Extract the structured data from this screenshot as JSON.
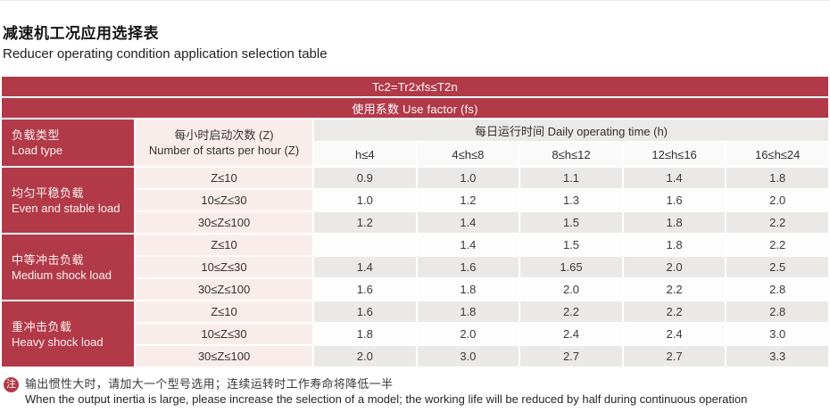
{
  "page": {
    "title_zh": "减速机工况应用选择表",
    "title_en": "Reducer operating condition application selection table"
  },
  "table": {
    "formula_bar": "Tc2=Tr2xfs≤T2n",
    "use_factor_bar": "使用系数 Use factor (fs)",
    "load_type_header_zh": "负载类型",
    "load_type_header_en": "Load type",
    "starts_header_zh": "每小时启动次数 (Z)",
    "starts_header_en": "Number of starts per hour (Z)",
    "daily_time_header": "每日运行时间 Daily operating time (h)",
    "time_columns": [
      "h≤4",
      "4≤h≤8",
      "8≤h≤12",
      "12≤h≤16",
      "16≤h≤24"
    ],
    "groups": [
      {
        "zh": "均匀平稳负载",
        "en": "Even and stable load",
        "rows": [
          {
            "z": "Z≤10",
            "values": [
              "0.9",
              "1.0",
              "1.1",
              "1.4",
              "1.8"
            ]
          },
          {
            "z": "10≤Z≤30",
            "values": [
              "1.0",
              "1.2",
              "1.3",
              "1.6",
              "2.0"
            ]
          },
          {
            "z": "30≤Z≤100",
            "values": [
              "1.2",
              "1.4",
              "1.5",
              "1.8",
              "2.2"
            ]
          }
        ]
      },
      {
        "zh": "中等冲击负载",
        "en": "Medium shock load",
        "rows": [
          {
            "z": "Z≤10",
            "values": [
              "",
              "1.4",
              "1.5",
              "1.8",
              "2.2"
            ]
          },
          {
            "z": "10≤Z≤30",
            "values": [
              "1.4",
              "1.6",
              "1.65",
              "2.0",
              "2.5"
            ]
          },
          {
            "z": "30≤Z≤100",
            "values": [
              "1.6",
              "1.8",
              "2.0",
              "2.2",
              "2.8"
            ]
          }
        ]
      },
      {
        "zh": "重冲击负载",
        "en": "Heavy shock load",
        "rows": [
          {
            "z": "Z≤10",
            "values": [
              "1.6",
              "1.8",
              "2.2",
              "2.2",
              "2.8"
            ]
          },
          {
            "z": "10≤Z≤30",
            "values": [
              "1.8",
              "2.0",
              "2.4",
              "2.4",
              "3.0"
            ]
          },
          {
            "z": "30≤Z≤100",
            "values": [
              "2.0",
              "3.0",
              "2.7",
              "2.7",
              "3.3"
            ]
          }
        ]
      }
    ]
  },
  "note": {
    "badge": "注",
    "zh": "输出惯性大时，请加大一个型号选用；连续运转时工作寿命将降低一半",
    "en": "When the output inertia is large, please increase the selection of a model; the working life will be reduced by half during continuous operation"
  },
  "colors": {
    "accent_red": "#b23948",
    "pink_cell": "#f9edeb",
    "gray_row": "#ebe9e8",
    "white_row": "#fdfdfd"
  }
}
